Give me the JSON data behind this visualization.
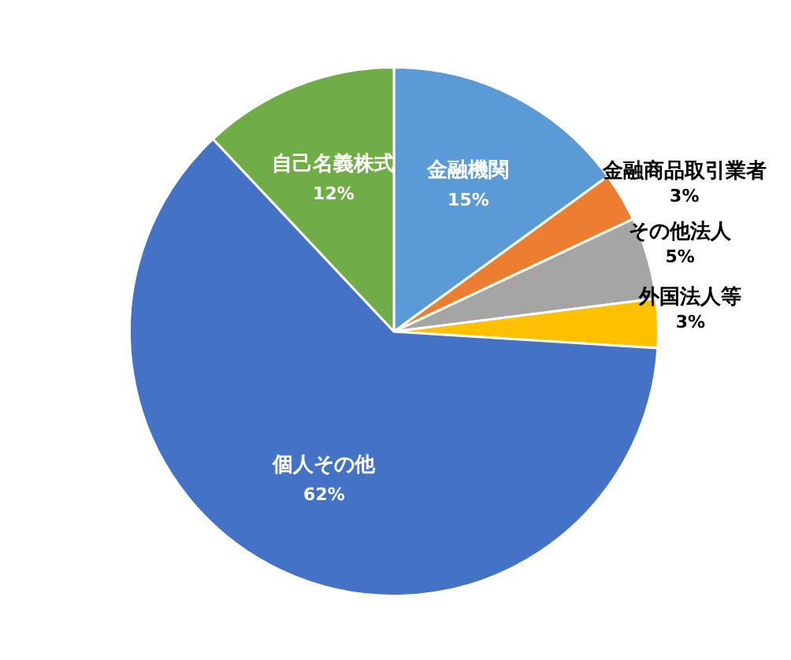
{
  "chart_data": {
    "type": "pie",
    "categories": [
      "金融機関",
      "金融商品取引業者",
      "その他法人",
      "外国法人等",
      "個人その他",
      "自己名義株式"
    ],
    "values": [
      15,
      3,
      5,
      3,
      62,
      12
    ],
    "colors": [
      "#5b9bd5",
      "#ed7d31",
      "#a5a5a5",
      "#ffc000",
      "#4472c4",
      "#70ad47"
    ],
    "value_labels": [
      "15%",
      "3%",
      "5%",
      "3%",
      "62%",
      "12%"
    ],
    "legend": false
  }
}
